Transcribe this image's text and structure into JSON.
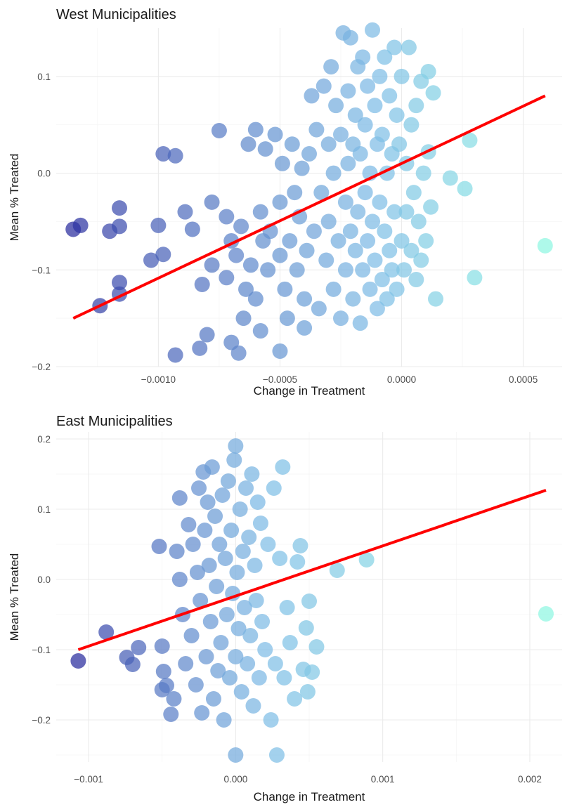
{
  "chart_data": [
    {
      "type": "scatter",
      "title": "West Municipalities",
      "xlabel": "Change in Treatment",
      "ylabel": "Mean % Treated",
      "xlim": [
        -0.00142,
        0.00066
      ],
      "ylim": [
        -0.2,
        0.15
      ],
      "xticks": [
        -0.001,
        -0.0005,
        0.0,
        0.0005
      ],
      "xtick_labels": [
        "−0.0010",
        "−0.0005",
        "0.0000",
        "0.0005"
      ],
      "yticks": [
        -0.2,
        -0.1,
        0.0,
        0.1
      ],
      "ytick_labels": [
        "−0.2",
        "−0.1",
        "0.0",
        "0.1"
      ],
      "grid": true,
      "legend": "none",
      "color_low": "#2a2d9e",
      "color_mid": "#7fbde6",
      "color_high": "#8ff7e2",
      "fit_color": "#ff0000",
      "fit_line": {
        "x": [
          -0.00135,
          0.00059
        ],
        "y": [
          -0.15,
          0.08
        ]
      },
      "points": [
        [
          -0.00135,
          -0.058
        ],
        [
          -0.00132,
          -0.054
        ],
        [
          -0.00124,
          -0.137
        ],
        [
          -0.0012,
          -0.06
        ],
        [
          -0.00116,
          -0.036
        ],
        [
          -0.00116,
          -0.055
        ],
        [
          -0.00116,
          -0.113
        ],
        [
          -0.00116,
          -0.125
        ],
        [
          -0.001,
          -0.054
        ],
        [
          -0.00103,
          -0.09
        ],
        [
          -0.00098,
          -0.084
        ],
        [
          -0.00098,
          0.02
        ],
        [
          -0.00093,
          0.018
        ],
        [
          -0.00093,
          -0.188
        ],
        [
          -0.00089,
          -0.04
        ],
        [
          -0.00086,
          -0.058
        ],
        [
          -0.00083,
          -0.181
        ],
        [
          -0.0008,
          -0.167
        ],
        [
          -0.00075,
          0.044
        ],
        [
          -0.0007,
          -0.175
        ],
        [
          -0.00067,
          -0.186
        ],
        [
          -0.0005,
          -0.184
        ],
        [
          -0.00065,
          -0.15
        ],
        [
          -0.00058,
          -0.163
        ],
        [
          -0.0006,
          -0.13
        ],
        [
          -0.00082,
          -0.115
        ],
        [
          -0.00078,
          -0.095
        ],
        [
          -0.0007,
          -0.07
        ],
        [
          -0.00078,
          -0.03
        ],
        [
          -0.00072,
          -0.108
        ],
        [
          -0.00072,
          -0.045
        ],
        [
          -0.00068,
          -0.085
        ],
        [
          -0.00066,
          -0.055
        ],
        [
          -0.00064,
          -0.12
        ],
        [
          -0.00063,
          0.03
        ],
        [
          -0.00062,
          -0.095
        ],
        [
          -0.0006,
          0.045
        ],
        [
          -0.00058,
          -0.04
        ],
        [
          -0.00057,
          -0.07
        ],
        [
          -0.00056,
          0.025
        ],
        [
          -0.00055,
          -0.1
        ],
        [
          -0.00054,
          -0.06
        ],
        [
          -0.00052,
          0.04
        ],
        [
          -0.0005,
          -0.085
        ],
        [
          -0.0005,
          -0.03
        ],
        [
          -0.00049,
          0.01
        ],
        [
          -0.00048,
          -0.12
        ],
        [
          -0.00047,
          -0.15
        ],
        [
          -0.00046,
          -0.07
        ],
        [
          -0.00045,
          0.03
        ],
        [
          -0.00044,
          -0.02
        ],
        [
          -0.00043,
          -0.1
        ],
        [
          -0.00042,
          -0.045
        ],
        [
          -0.00041,
          0.005
        ],
        [
          -0.0004,
          -0.16
        ],
        [
          -0.0004,
          -0.13
        ],
        [
          -0.00039,
          -0.08
        ],
        [
          -0.00038,
          0.02
        ],
        [
          -0.00037,
          0.08
        ],
        [
          -0.00036,
          -0.06
        ],
        [
          -0.00035,
          0.045
        ],
        [
          -0.00034,
          -0.14
        ],
        [
          -0.00033,
          -0.02
        ],
        [
          -0.00032,
          0.09
        ],
        [
          -0.00031,
          -0.09
        ],
        [
          -0.0003,
          0.03
        ],
        [
          -0.0003,
          -0.05
        ],
        [
          -0.00029,
          0.11
        ],
        [
          -0.00028,
          -0.12
        ],
        [
          -0.00028,
          0.0
        ],
        [
          -0.00027,
          0.07
        ],
        [
          -0.00026,
          -0.07
        ],
        [
          -0.00025,
          -0.15
        ],
        [
          -0.00025,
          0.04
        ],
        [
          -0.00024,
          0.145
        ],
        [
          -0.00023,
          -0.03
        ],
        [
          -0.00023,
          -0.1
        ],
        [
          -0.00022,
          0.01
        ],
        [
          -0.00022,
          0.085
        ],
        [
          -0.00021,
          -0.06
        ],
        [
          -0.00021,
          0.14
        ],
        [
          -0.0002,
          -0.13
        ],
        [
          -0.0002,
          0.03
        ],
        [
          -0.00019,
          -0.08
        ],
        [
          -0.00019,
          0.06
        ],
        [
          -0.00018,
          -0.04
        ],
        [
          -0.00018,
          0.11
        ],
        [
          -0.00017,
          -0.155
        ],
        [
          -0.00017,
          0.02
        ],
        [
          -0.00016,
          -0.1
        ],
        [
          -0.00016,
          0.12
        ],
        [
          -0.00015,
          -0.02
        ],
        [
          -0.00015,
          0.05
        ],
        [
          -0.00014,
          -0.07
        ],
        [
          -0.00014,
          0.09
        ],
        [
          -0.00013,
          -0.12
        ],
        [
          -0.00013,
          0.0
        ],
        [
          -0.00012,
          0.148
        ],
        [
          -0.00012,
          -0.05
        ],
        [
          -0.00011,
          0.07
        ],
        [
          -0.00011,
          -0.09
        ],
        [
          -0.0001,
          0.03
        ],
        [
          -0.0001,
          -0.14
        ],
        [
          -9e-05,
          0.1
        ],
        [
          -9e-05,
          -0.03
        ],
        [
          -8e-05,
          0.04
        ],
        [
          -8e-05,
          -0.11
        ],
        [
          -7e-05,
          0.12
        ],
        [
          -7e-05,
          -0.06
        ],
        [
          -6e-05,
          0.0
        ],
        [
          -6e-05,
          -0.13
        ],
        [
          -5e-05,
          0.08
        ],
        [
          -5e-05,
          -0.08
        ],
        [
          -4e-05,
          0.02
        ],
        [
          -4e-05,
          -0.1
        ],
        [
          -3e-05,
          0.13
        ],
        [
          -3e-05,
          -0.04
        ],
        [
          -2e-05,
          0.06
        ],
        [
          -2e-05,
          -0.12
        ],
        [
          -1e-05,
          0.03
        ],
        [
          0.0,
          -0.07
        ],
        [
          0.0,
          0.1
        ],
        [
          1e-05,
          -0.1
        ],
        [
          2e-05,
          0.01
        ],
        [
          2e-05,
          -0.04
        ],
        [
          3e-05,
          0.13
        ],
        [
          4e-05,
          -0.08
        ],
        [
          4e-05,
          0.05
        ],
        [
          5e-05,
          -0.02
        ],
        [
          6e-05,
          -0.11
        ],
        [
          6e-05,
          0.07
        ],
        [
          7e-05,
          -0.05
        ],
        [
          8e-05,
          0.095
        ],
        [
          8e-05,
          -0.09
        ],
        [
          9e-05,
          0.0
        ],
        [
          0.0001,
          -0.07
        ],
        [
          0.00011,
          0.105
        ],
        [
          0.00011,
          0.022
        ],
        [
          0.00012,
          -0.035
        ],
        [
          0.00013,
          0.083
        ],
        [
          0.00014,
          -0.13
        ],
        [
          0.0002,
          -0.005
        ],
        [
          0.00026,
          -0.016
        ],
        [
          0.00028,
          0.034
        ],
        [
          0.0003,
          -0.108
        ],
        [
          0.00059,
          -0.075
        ]
      ]
    },
    {
      "type": "scatter",
      "title": "East Municipalities",
      "xlabel": "Change in Treatment",
      "ylabel": "Mean % Treated",
      "xlim": [
        -0.00122,
        0.00222
      ],
      "ylim": [
        -0.26,
        0.21
      ],
      "xticks": [
        -0.001,
        0.0,
        0.001,
        0.002
      ],
      "xtick_labels": [
        "−0.001",
        "0.000",
        "0.001",
        "0.002"
      ],
      "yticks": [
        -0.2,
        -0.1,
        0.0,
        0.1,
        0.2
      ],
      "ytick_labels": [
        "−0.2",
        "−0.1",
        "0.0",
        "0.1",
        "0.2"
      ],
      "grid": true,
      "legend": "none",
      "color_low": "#2a2d9e",
      "color_mid": "#7fbde6",
      "color_high": "#8ff7e2",
      "fit_color": "#ff0000",
      "fit_line": {
        "x": [
          -0.00107,
          0.00211
        ],
        "y": [
          -0.1,
          0.127
        ]
      },
      "points": [
        [
          -0.00107,
          -0.116
        ],
        [
          -0.00088,
          -0.075
        ],
        [
          -0.00074,
          -0.111
        ],
        [
          -0.0007,
          -0.121
        ],
        [
          -0.00066,
          -0.097
        ],
        [
          -0.00052,
          0.047
        ],
        [
          -0.0005,
          -0.095
        ],
        [
          -0.0005,
          -0.157
        ],
        [
          -0.00049,
          -0.131
        ],
        [
          -0.00047,
          -0.151
        ],
        [
          -0.00044,
          -0.192
        ],
        [
          -0.00042,
          -0.17
        ],
        [
          -0.0004,
          0.04
        ],
        [
          -0.00038,
          0.116
        ],
        [
          -0.00038,
          0.0
        ],
        [
          -0.00036,
          -0.05
        ],
        [
          -0.00034,
          -0.12
        ],
        [
          -0.00032,
          0.078
        ],
        [
          -0.0003,
          -0.08
        ],
        [
          -0.00029,
          0.05
        ],
        [
          -0.00027,
          -0.15
        ],
        [
          -0.00026,
          0.01
        ],
        [
          -0.00025,
          0.13
        ],
        [
          -0.00024,
          -0.03
        ],
        [
          -0.00023,
          -0.19
        ],
        [
          -0.00022,
          0.153
        ],
        [
          -0.00021,
          0.07
        ],
        [
          -0.0002,
          -0.11
        ],
        [
          -0.00019,
          0.11
        ],
        [
          -0.00018,
          0.02
        ],
        [
          -0.00017,
          -0.06
        ],
        [
          -0.00016,
          0.16
        ],
        [
          -0.00015,
          -0.17
        ],
        [
          -0.00014,
          0.09
        ],
        [
          -0.00013,
          -0.01
        ],
        [
          -0.00012,
          -0.13
        ],
        [
          -0.00011,
          0.05
        ],
        [
          -0.0001,
          -0.09
        ],
        [
          -9e-05,
          0.12
        ],
        [
          -8e-05,
          -0.2
        ],
        [
          -7e-05,
          0.03
        ],
        [
          -6e-05,
          -0.05
        ],
        [
          -5e-05,
          0.14
        ],
        [
          -4e-05,
          -0.14
        ],
        [
          -3e-05,
          0.07
        ],
        [
          -2e-05,
          -0.02
        ],
        [
          -1e-05,
          0.17
        ],
        [
          0.0,
          -0.11
        ],
        [
          0.0,
          0.19
        ],
        [
          0.0,
          -0.25
        ],
        [
          1e-05,
          0.01
        ],
        [
          2e-05,
          -0.07
        ],
        [
          3e-05,
          0.1
        ],
        [
          4e-05,
          -0.16
        ],
        [
          5e-05,
          0.04
        ],
        [
          6e-05,
          -0.04
        ],
        [
          7e-05,
          0.13
        ],
        [
          8e-05,
          -0.12
        ],
        [
          9e-05,
          0.06
        ],
        [
          0.0001,
          -0.08
        ],
        [
          0.00011,
          0.15
        ],
        [
          0.00012,
          -0.18
        ],
        [
          0.00013,
          0.02
        ],
        [
          0.00014,
          -0.03
        ],
        [
          0.00015,
          0.11
        ],
        [
          0.00016,
          -0.14
        ],
        [
          0.00017,
          0.08
        ],
        [
          0.00018,
          -0.06
        ],
        [
          0.0002,
          -0.1
        ],
        [
          0.00022,
          0.05
        ],
        [
          0.00024,
          -0.2
        ],
        [
          0.00026,
          0.13
        ],
        [
          0.00027,
          -0.12
        ],
        [
          0.00028,
          -0.25
        ],
        [
          0.0003,
          0.03
        ],
        [
          0.00032,
          0.16
        ],
        [
          0.00033,
          -0.14
        ],
        [
          0.00035,
          -0.04
        ],
        [
          0.00037,
          -0.09
        ],
        [
          0.0004,
          -0.17
        ],
        [
          0.00042,
          0.025
        ],
        [
          0.00044,
          0.048
        ],
        [
          0.00046,
          -0.128
        ],
        [
          0.00048,
          -0.069
        ],
        [
          0.00049,
          -0.16
        ],
        [
          0.0005,
          -0.031
        ],
        [
          0.00052,
          -0.132
        ],
        [
          0.00055,
          -0.096
        ],
        [
          0.00069,
          0.013
        ],
        [
          0.00089,
          0.028
        ],
        [
          0.00211,
          -0.049
        ]
      ]
    }
  ]
}
